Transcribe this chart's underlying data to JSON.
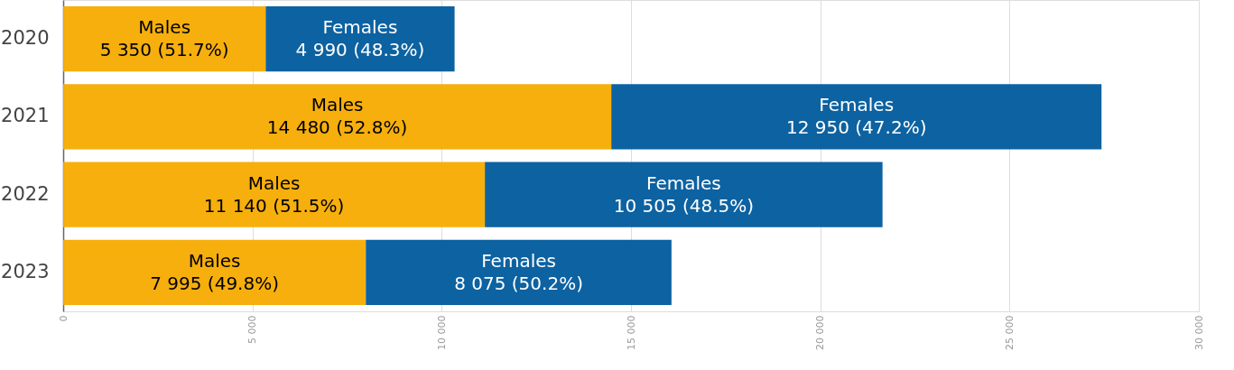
{
  "chart_data": {
    "type": "bar",
    "orientation": "horizontal",
    "stacked": true,
    "grid": "x",
    "categories": [
      "2020",
      "2021",
      "2022",
      "2023"
    ],
    "series": [
      {
        "name": "Males",
        "color": "#f6ab00",
        "values": [
          5350,
          14480,
          11140,
          7995
        ],
        "value_labels": [
          "5 350 (51.7%)",
          "14 480 (52.8%)",
          "11 140 (51.5%)",
          "7 995 (49.8%)"
        ]
      },
      {
        "name": "Females",
        "color": "#005a9c",
        "values": [
          4990,
          12950,
          10505,
          8075
        ],
        "value_labels": [
          "4 990 (48.3%)",
          "12 950 (47.2%)",
          "10 505 (48.5%)",
          "8 075 (50.2%)"
        ]
      }
    ],
    "xlim": [
      0,
      30000
    ],
    "xticks": [
      0,
      {
        "value": 5000,
        "label": "5 000"
      },
      {
        "value": 10000,
        "label": "10 000"
      },
      {
        "value": 15000,
        "label": "15 000"
      },
      {
        "value": 20000,
        "label": "20 000"
      },
      {
        "value": 25000,
        "label": "25 000"
      },
      {
        "value": 30000,
        "label": "30 000"
      }
    ]
  }
}
